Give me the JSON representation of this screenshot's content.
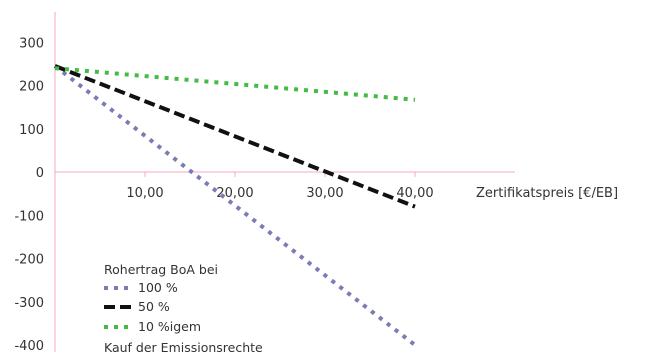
{
  "chart_data": {
    "type": "line",
    "title": "",
    "xlabel": "Zertifikatspreis [€/EB]",
    "ylabel": "",
    "xlim": [
      0,
      46
    ],
    "ylim": [
      -400,
      300
    ],
    "x_ticks": [
      10,
      20,
      30,
      40
    ],
    "x_tick_labels": [
      "10,00",
      "20,00",
      "30,00",
      "40,00"
    ],
    "y_ticks": [
      300,
      200,
      100,
      0,
      -100,
      -200,
      -300,
      -400
    ],
    "y_tick_labels": [
      "300",
      "200",
      "100",
      "0",
      "-100",
      "-200",
      "-300",
      "-400"
    ],
    "grid": false,
    "legend_position": "bottom-left",
    "legend_title": "Rohertrag BoA bei",
    "legend_footer": "Kauf der Emissionsrechte",
    "series": [
      {
        "name": "100 %",
        "color": "#7b7bb5",
        "dash": "dotted",
        "x": [
          0,
          40
        ],
        "y": [
          245,
          -400
        ]
      },
      {
        "name": "50 %",
        "color": "#111111",
        "dash": "dashed",
        "x": [
          0,
          40
        ],
        "y": [
          245,
          -80
        ]
      },
      {
        "name": "10 %igem",
        "color": "#44bb44",
        "dash": "dotted",
        "x": [
          0,
          40
        ],
        "y": [
          240,
          167
        ]
      }
    ]
  }
}
